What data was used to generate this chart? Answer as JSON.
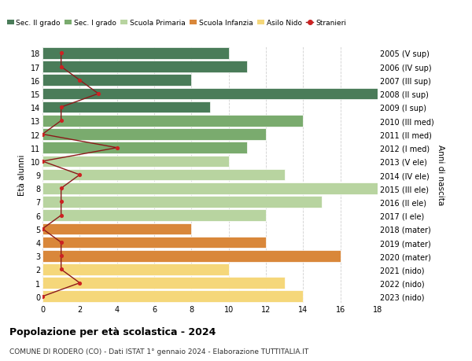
{
  "ages": [
    18,
    17,
    16,
    15,
    14,
    13,
    12,
    11,
    10,
    9,
    8,
    7,
    6,
    5,
    4,
    3,
    2,
    1,
    0
  ],
  "labels_right": [
    "2005 (V sup)",
    "2006 (IV sup)",
    "2007 (III sup)",
    "2008 (II sup)",
    "2009 (I sup)",
    "2010 (III med)",
    "2011 (II med)",
    "2012 (I med)",
    "2013 (V ele)",
    "2014 (IV ele)",
    "2015 (III ele)",
    "2016 (II ele)",
    "2017 (I ele)",
    "2018 (mater)",
    "2019 (mater)",
    "2020 (mater)",
    "2021 (nido)",
    "2022 (nido)",
    "2023 (nido)"
  ],
  "bar_values": [
    10,
    11,
    8,
    18,
    9,
    14,
    12,
    11,
    10,
    13,
    19,
    15,
    12,
    8,
    12,
    16,
    10,
    13,
    14
  ],
  "bar_colors": [
    "#4a7c59",
    "#4a7c59",
    "#4a7c59",
    "#4a7c59",
    "#4a7c59",
    "#7aab6e",
    "#7aab6e",
    "#7aab6e",
    "#b8d4a0",
    "#b8d4a0",
    "#b8d4a0",
    "#b8d4a0",
    "#b8d4a0",
    "#d9873a",
    "#d9873a",
    "#d9873a",
    "#f5d77a",
    "#f5d77a",
    "#f5d77a"
  ],
  "stranieri_values": [
    1,
    1,
    2,
    3,
    1,
    1,
    0,
    4,
    0,
    2,
    1,
    1,
    1,
    0,
    1,
    1,
    1,
    2,
    0
  ],
  "legend_labels": [
    "Sec. II grado",
    "Sec. I grado",
    "Scuola Primaria",
    "Scuola Infanzia",
    "Asilo Nido",
    "Stranieri"
  ],
  "legend_colors": [
    "#4a7c59",
    "#7aab6e",
    "#b8d4a0",
    "#d9873a",
    "#f5d77a",
    "#cc2222"
  ],
  "title": "Popolazione per età scolastica - 2024",
  "subtitle": "COMUNE DI RODERO (CO) - Dati ISTAT 1° gennaio 2024 - Elaborazione TUTTITALIA.IT",
  "ylabel": "Età alunni",
  "ylabel_right": "Anni di nascita",
  "xlim": [
    0,
    18
  ],
  "ylim": [
    -0.5,
    18.5
  ],
  "bg_color": "#ffffff",
  "grid_color": "#d0d0d0",
  "stranieri_line_color": "#8b1a1a",
  "stranieri_dot_color": "#cc2222"
}
